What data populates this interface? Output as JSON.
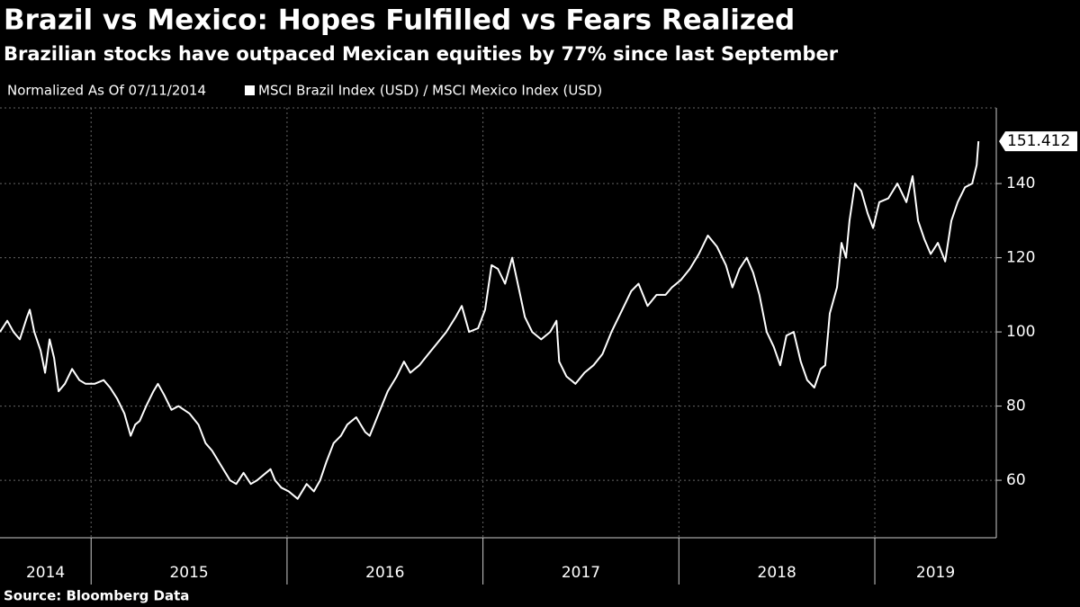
{
  "chart_data": {
    "type": "line",
    "title": "Brazil vs Mexico: Hopes Fulfilled vs Fears Realized",
    "subtitle": "Brazilian stocks have outpaced Mexican equities by 77% since last September",
    "note": "Normalized As Of 07/11/2014",
    "source": "Source: Bloomberg Data",
    "x": [
      2014.535,
      2014.572,
      2014.604,
      2014.636,
      2014.673,
      2014.687,
      2014.71,
      2014.742,
      2014.765,
      2014.788,
      2014.811,
      2014.834,
      2014.866,
      2014.903,
      2014.94,
      2014.972,
      2015.018,
      2015.064,
      2015.097,
      2015.133,
      2015.17,
      2015.202,
      2015.225,
      2015.248,
      2015.281,
      2015.318,
      2015.341,
      2015.373,
      2015.41,
      2015.446,
      2015.502,
      2015.548,
      2015.584,
      2015.617,
      2015.663,
      2015.709,
      2015.741,
      2015.778,
      2015.815,
      2015.847,
      2015.893,
      2015.916,
      2015.939,
      2015.971,
      2016.008,
      2016.054,
      2016.1,
      2016.137,
      2016.169,
      2016.201,
      2016.238,
      2016.275,
      2016.307,
      2016.353,
      2016.399,
      2016.422,
      2016.468,
      2016.514,
      2016.56,
      2016.597,
      2016.629,
      2016.675,
      2016.721,
      2016.767,
      2016.813,
      2016.86,
      2016.892,
      2016.929,
      2016.975,
      2017.011,
      2017.044,
      2017.076,
      2017.113,
      2017.149,
      2017.182,
      2017.214,
      2017.251,
      2017.297,
      2017.343,
      2017.375,
      2017.389,
      2017.426,
      2017.472,
      2017.518,
      2017.564,
      2017.61,
      2017.656,
      2017.711,
      2017.757,
      2017.794,
      2017.84,
      2017.886,
      2017.932,
      2017.964,
      2018.01,
      2018.056,
      2018.102,
      2018.148,
      2018.194,
      2018.24,
      2018.273,
      2018.309,
      2018.346,
      2018.379,
      2018.411,
      2018.448,
      2018.484,
      2018.517,
      2018.549,
      2018.586,
      2018.622,
      2018.655,
      2018.691,
      2018.724,
      2018.747,
      2018.77,
      2018.807,
      2018.83,
      2018.853,
      2018.871,
      2018.899,
      2018.931,
      2018.963,
      2018.991,
      2019.023,
      2019.069,
      2019.115,
      2019.161,
      2019.193,
      2019.221,
      2019.253,
      2019.285,
      2019.322,
      2019.359,
      2019.391,
      2019.423,
      2019.46,
      2019.497,
      2019.52,
      2019.529
    ],
    "series": [
      {
        "name": "MSCI Brazil Index (USD) / MSCI Mexico Index (USD)",
        "color": "#ffffff",
        "values": [
          100,
          103,
          100,
          98,
          104,
          106,
          100,
          95,
          89,
          98,
          93,
          84,
          86,
          90,
          87,
          86,
          86,
          87,
          85,
          82,
          78,
          72,
          75,
          76,
          80,
          84,
          86,
          83,
          79,
          80,
          78,
          75,
          70,
          68,
          64,
          60,
          59,
          62,
          59,
          60,
          62,
          63,
          60,
          58,
          57,
          55,
          59,
          57,
          60,
          65,
          70,
          72,
          75,
          77,
          73,
          72,
          78,
          84,
          88,
          92,
          89,
          91,
          94,
          97,
          100,
          104,
          107,
          100,
          101,
          106,
          118,
          117,
          113,
          120,
          112,
          104,
          100,
          98,
          100,
          103,
          92,
          88,
          86,
          89,
          91,
          94,
          100,
          106,
          111,
          113,
          107,
          110,
          110,
          112,
          114,
          117,
          121,
          126,
          123,
          118,
          112,
          117,
          120,
          116,
          110,
          100,
          96,
          91,
          99,
          100,
          92,
          87,
          85,
          90,
          91,
          105,
          112,
          124,
          120,
          130,
          140,
          138,
          132,
          128,
          135,
          136,
          140,
          135,
          142,
          130,
          125,
          121,
          124,
          119,
          130,
          135,
          139,
          140,
          145,
          151.412
        ]
      }
    ],
    "xlim": [
      2014.535,
      2019.62
    ],
    "xticks": [
      {
        "value": 2014,
        "label": "2014"
      },
      {
        "value": 2015,
        "label": "2015"
      },
      {
        "value": 2016,
        "label": "2016"
      },
      {
        "value": 2017,
        "label": "2017"
      },
      {
        "value": 2018,
        "label": "2018"
      },
      {
        "value": 2019,
        "label": "2019"
      }
    ],
    "ylim": [
      44.5,
      160.4
    ],
    "yticks": [
      60,
      80,
      100,
      120,
      140
    ],
    "grid": true
  }
}
